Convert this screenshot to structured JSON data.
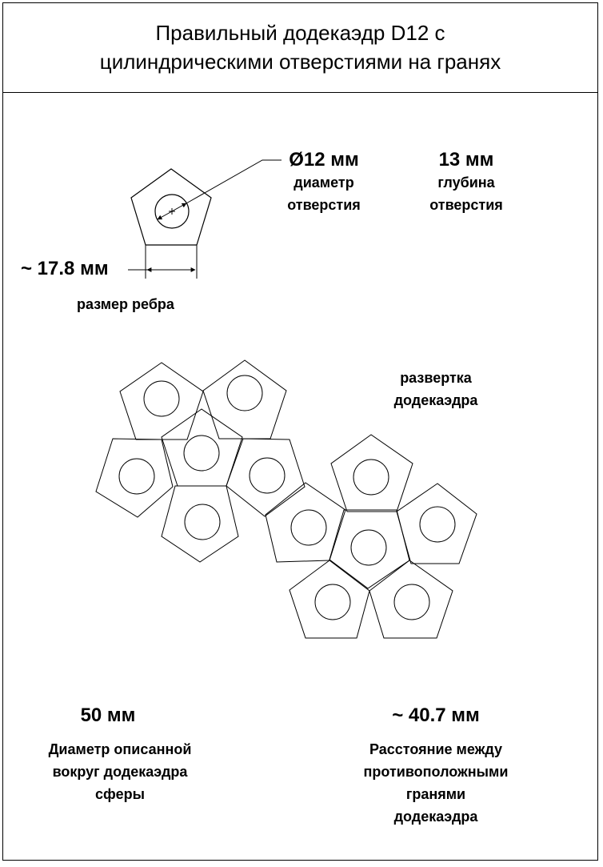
{
  "title": {
    "line1": "Правильный додекаэдр D12 с",
    "line2": "цилиндрическими отверстиями на гранях"
  },
  "hole_diameter": {
    "value": "Ø12 мм",
    "caption_line1": "диаметр",
    "caption_line2": "отверстия"
  },
  "hole_depth": {
    "value": "13 мм",
    "caption_line1": "глубина",
    "caption_line2": "отверстия"
  },
  "edge_size": {
    "value": "~ 17.8 мм",
    "caption": "размер ребра"
  },
  "net": {
    "caption_line1": "развертка",
    "caption_line2": "додекаэдра"
  },
  "sphere_diameter": {
    "value": "50 мм",
    "caption_line1": "Диаметр описанной",
    "caption_line2": "вокруг  додекаэдра",
    "caption_line3": "сферы"
  },
  "face_distance": {
    "value": "~ 40.7 мм",
    "caption_line1": "Расстояние между",
    "caption_line2": "противоположными",
    "caption_line3": "гранями",
    "caption_line4": "додекаэдра"
  }
}
